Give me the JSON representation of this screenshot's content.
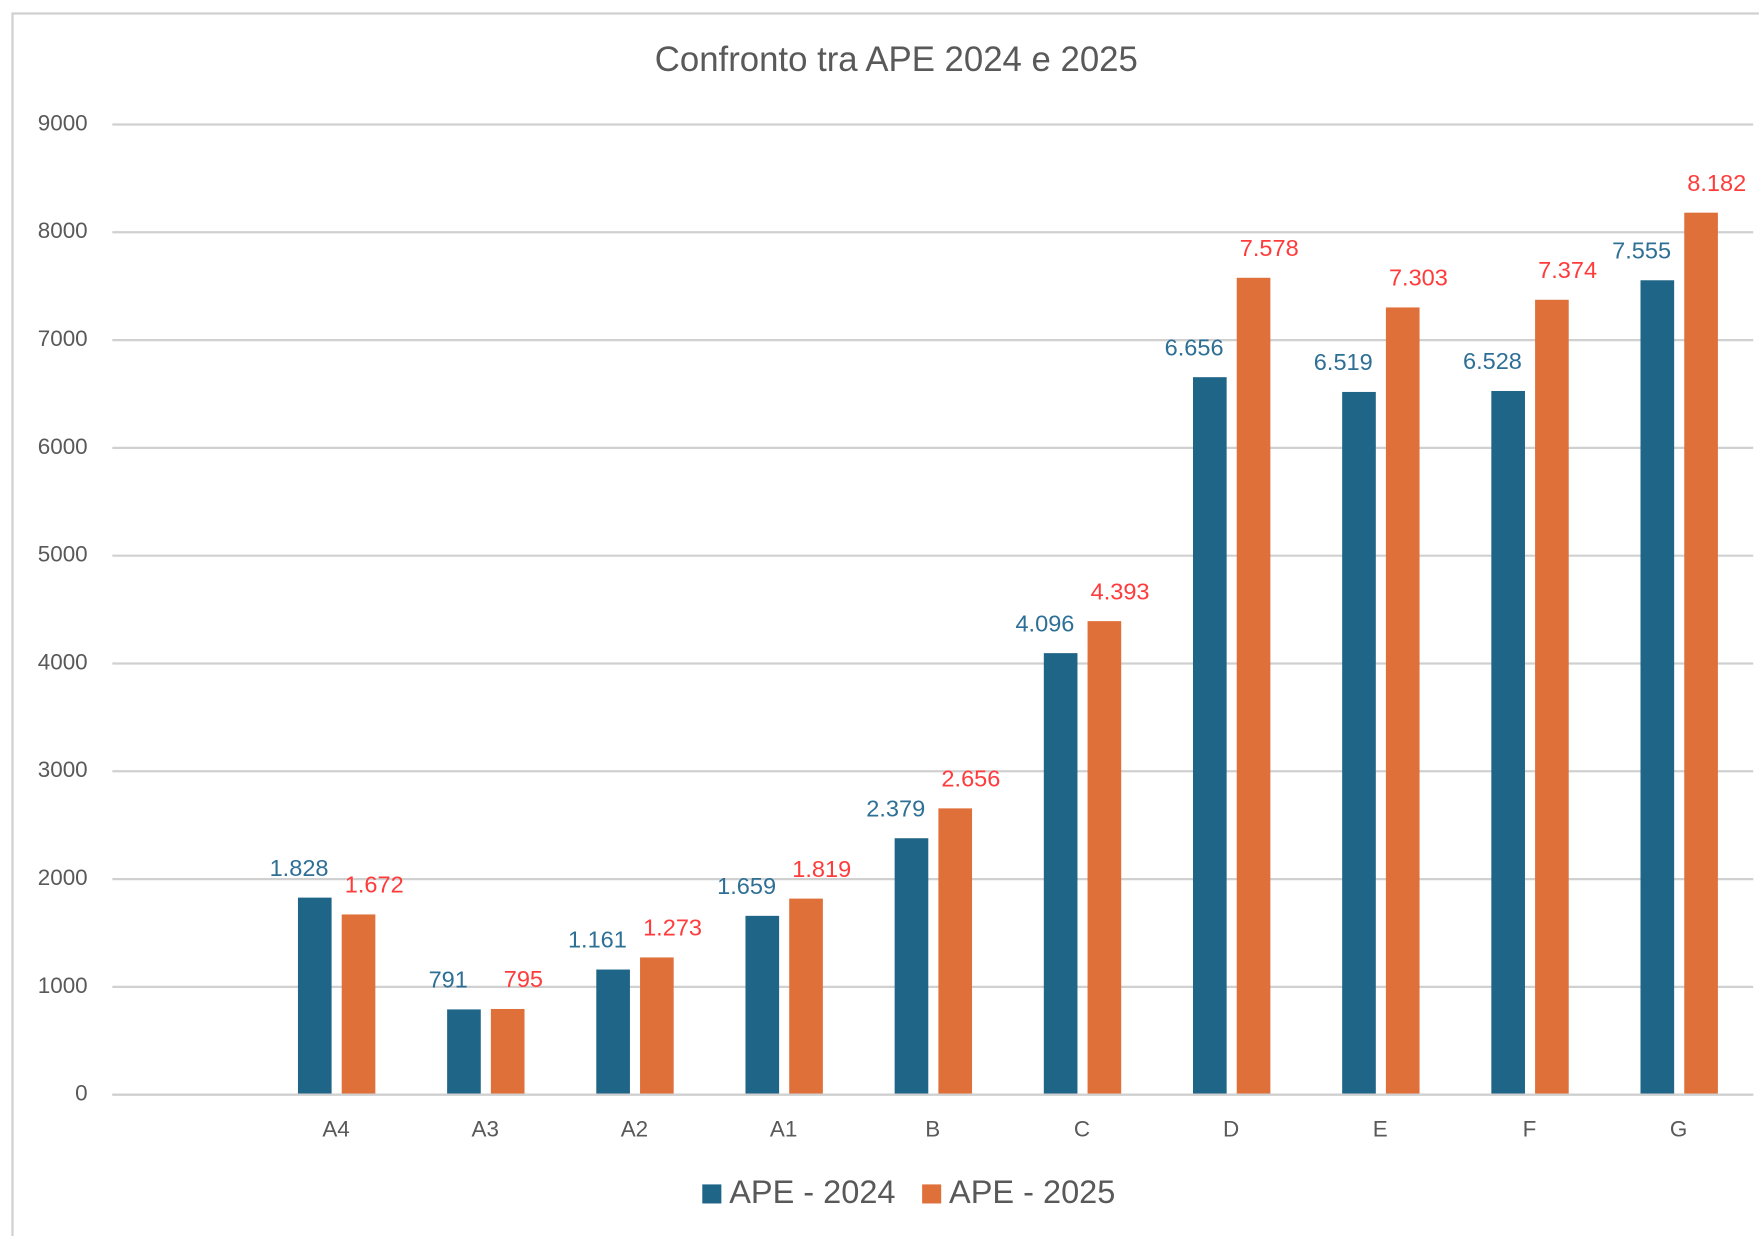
{
  "chart_data": {
    "type": "bar",
    "title": "Confronto tra APE 2024 e 2025",
    "categories": [
      null,
      "A4",
      "A3",
      "A2",
      "A1",
      "B",
      "C",
      "D",
      "E",
      "F",
      "G"
    ],
    "series": [
      {
        "name": "APE - 2024",
        "color": "#1f6587",
        "label_color": "#2e6f96",
        "values": [
          null,
          1828,
          791,
          1161,
          1659,
          2379,
          4096,
          6656,
          6519,
          6528,
          7555
        ],
        "value_labels": [
          null,
          "1.828",
          "791",
          "1.161",
          "1.659",
          "2.379",
          "4.096",
          "6.656",
          "6.519",
          "6.528",
          "7.555"
        ]
      },
      {
        "name": "APE - 2025",
        "color": "#e0703a",
        "label_color": "#ff3b3b",
        "values": [
          null,
          1672,
          795,
          1273,
          1819,
          2656,
          4393,
          7578,
          7303,
          7374,
          8182
        ],
        "value_labels": [
          null,
          "1.672",
          "795",
          "1.273",
          "1.819",
          "2.656",
          "4.393",
          "7.578",
          "7.303",
          "7.374",
          "8.182"
        ]
      }
    ],
    "ylim": [
      0,
      9000
    ],
    "yticks": [
      0,
      1000,
      2000,
      3000,
      4000,
      5000,
      6000,
      7000,
      8000,
      9000
    ],
    "grid": true,
    "legend": "bottom"
  }
}
